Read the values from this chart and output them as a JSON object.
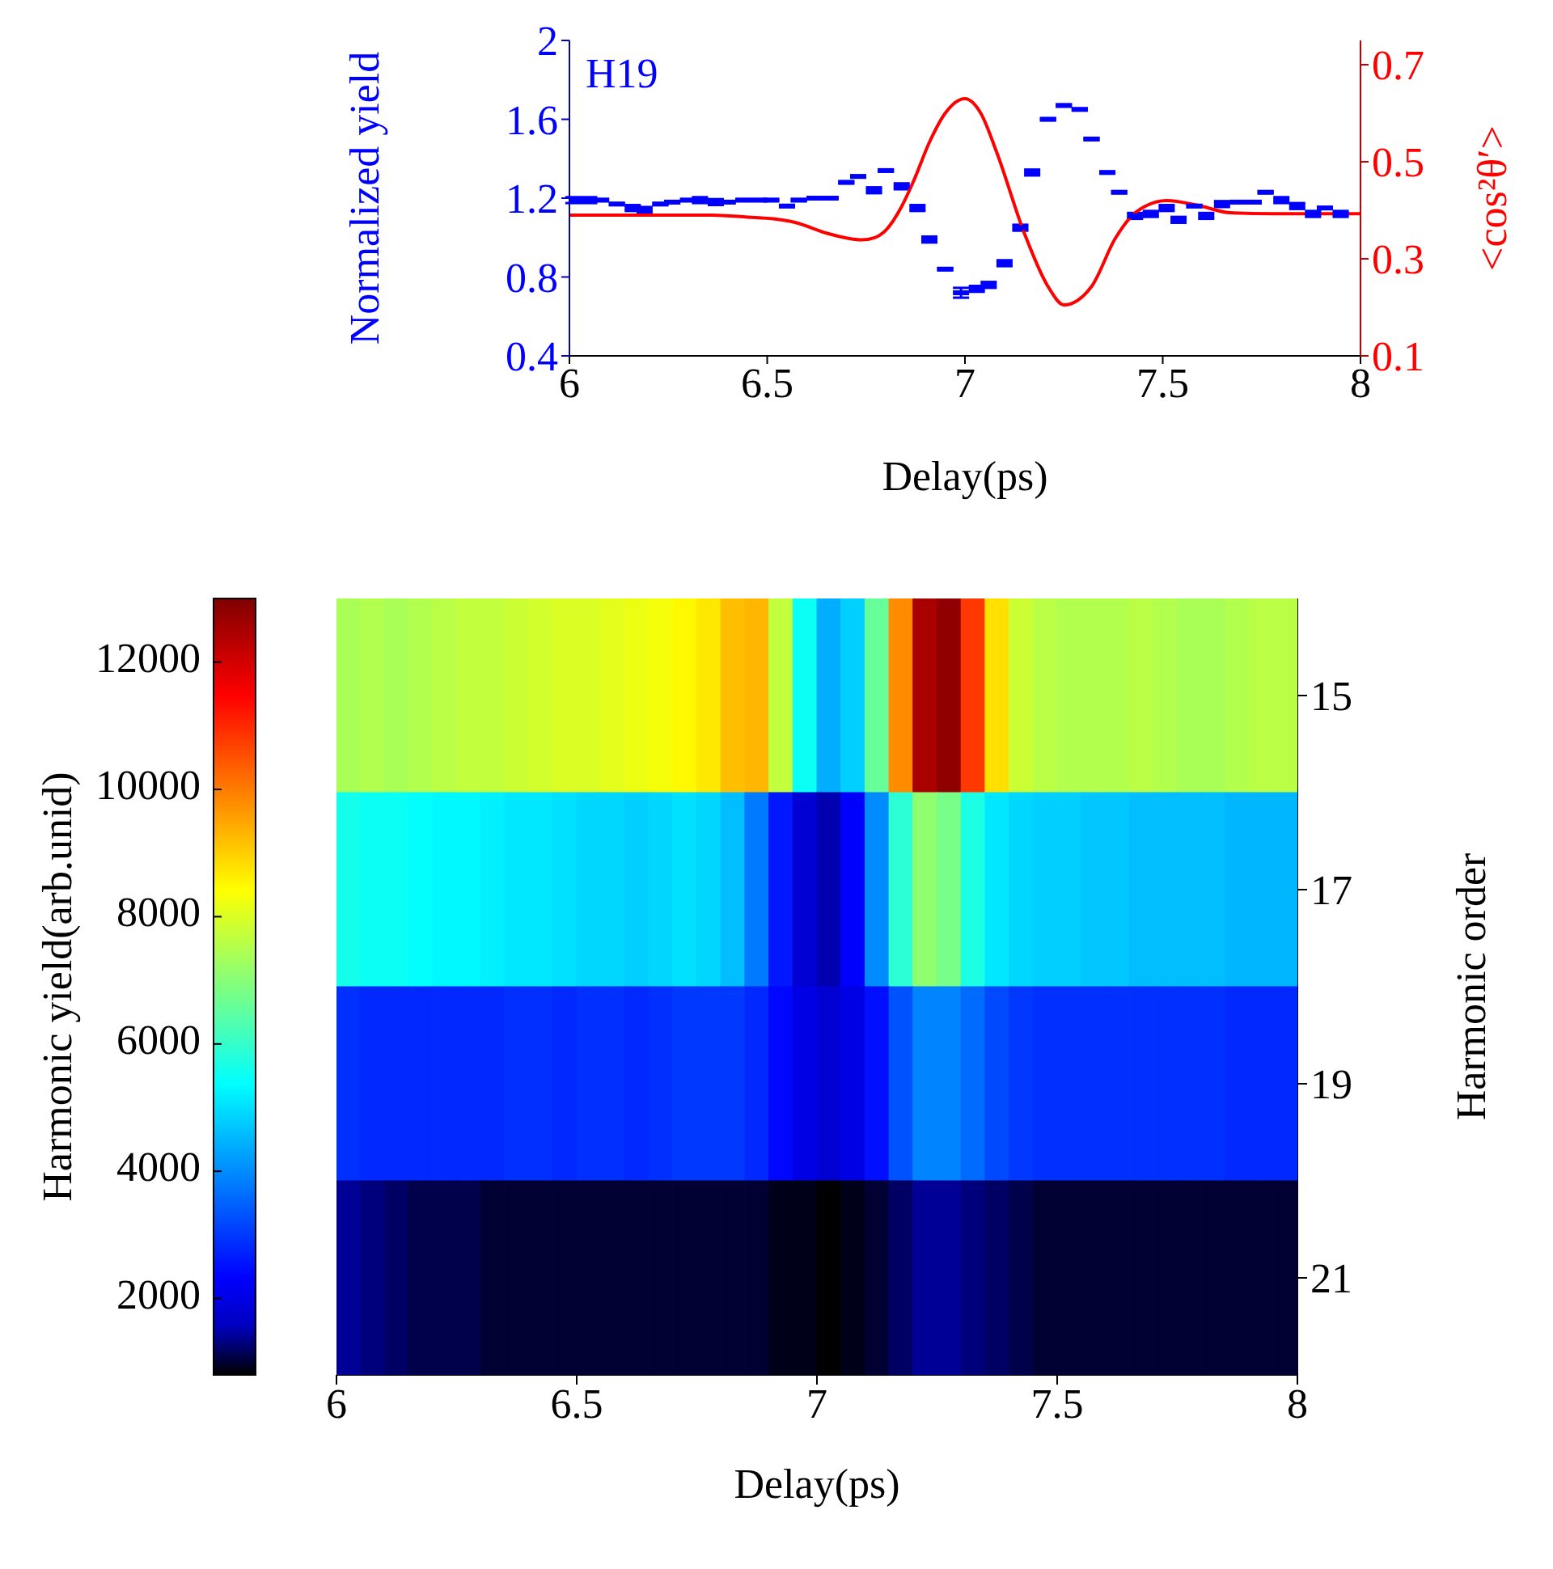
{
  "chart_data": [
    {
      "type": "scatter",
      "xlabel": "Delay(ps)",
      "ylabel": "Normalized yield",
      "y2label": "<cos²θ′>",
      "annotations": [
        "H19"
      ],
      "xlim": [
        6,
        8
      ],
      "xticks": [
        6,
        6.5,
        7,
        7.5,
        8
      ],
      "ylim": [
        0.4,
        2
      ],
      "yticks": [
        0.4,
        0.8,
        1.2,
        1.6,
        2
      ],
      "y2lim": [
        0.1,
        0.75
      ],
      "y2ticks": [
        0.1,
        0.3,
        0.5,
        0.7
      ],
      "series": [
        {
          "type": "scatter",
          "color": "#0000ff",
          "x": [
            6.01,
            6.05,
            6.08,
            6.12,
            6.16,
            6.19,
            6.23,
            6.26,
            6.3,
            6.33,
            6.37,
            6.4,
            6.44,
            6.48,
            6.51,
            6.55,
            6.58,
            6.62,
            6.66,
            6.7,
            6.73,
            6.77,
            6.8,
            6.84,
            6.88,
            6.91,
            6.95,
            6.99,
            7.03,
            7.06,
            7.1,
            7.14,
            7.17,
            7.21,
            7.25,
            7.29,
            7.32,
            7.36,
            7.39,
            7.43,
            7.47,
            7.51,
            7.54,
            7.58,
            7.61,
            7.65,
            7.69,
            7.73,
            7.76,
            7.8,
            7.84,
            7.88,
            7.91,
            7.95
          ],
          "values": [
            1.19,
            1.19,
            1.19,
            1.17,
            1.15,
            1.14,
            1.17,
            1.18,
            1.19,
            1.19,
            1.18,
            1.18,
            1.19,
            1.19,
            1.19,
            1.16,
            1.19,
            1.2,
            1.2,
            1.28,
            1.31,
            1.24,
            1.34,
            1.26,
            1.15,
            0.99,
            0.84,
            0.72,
            0.74,
            0.76,
            0.87,
            1.05,
            1.33,
            1.6,
            1.67,
            1.65,
            1.5,
            1.33,
            1.23,
            1.11,
            1.12,
            1.15,
            1.09,
            1.16,
            1.11,
            1.17,
            1.18,
            1.18,
            1.23,
            1.19,
            1.16,
            1.12,
            1.15,
            1.12
          ],
          "errors": [
            0.015,
            0.015,
            0.005,
            0.005,
            0.015,
            0.015,
            0.005,
            0.005,
            0.005,
            0.015,
            0.015,
            0.005,
            0.005,
            0.005,
            0.005,
            0.005,
            0.005,
            0.005,
            0.005,
            0.005,
            0.005,
            0.015,
            0.005,
            0.015,
            0.015,
            0.015,
            0.005,
            0.025,
            0.015,
            0.015,
            0.015,
            0.015,
            0.015,
            0.005,
            0.005,
            0.005,
            0.005,
            0.005,
            0.005,
            0.015,
            0.015,
            0.015,
            0.015,
            0.005,
            0.015,
            0.015,
            0.005,
            0.005,
            0.005,
            0.015,
            0.015,
            0.015,
            0.005,
            0.015
          ]
        },
        {
          "type": "line",
          "axis": "y2",
          "color": "#ff0000",
          "x": [
            6.0,
            6.2,
            6.36,
            6.45,
            6.52,
            6.57,
            6.65,
            6.7,
            6.74,
            6.77,
            6.8,
            6.84,
            6.87,
            6.91,
            6.95,
            7.0,
            7.04,
            7.08,
            7.15,
            7.21,
            7.25,
            7.32,
            7.38,
            7.42,
            7.46,
            7.51,
            7.59,
            7.67,
            7.78,
            8.0
          ],
          "values": [
            0.39,
            0.39,
            0.39,
            0.386,
            0.382,
            0.375,
            0.353,
            0.343,
            0.339,
            0.343,
            0.359,
            0.408,
            0.46,
            0.54,
            0.6,
            0.63,
            0.6,
            0.52,
            0.353,
            0.243,
            0.205,
            0.243,
            0.342,
            0.387,
            0.41,
            0.42,
            0.41,
            0.395,
            0.393,
            0.393
          ]
        }
      ]
    },
    {
      "type": "heatmap",
      "xlabel": "Delay(ps)",
      "ylabel": "Harmonic order",
      "clabel": "Harmonic yield(arb.unid)",
      "xlim": [
        6,
        8
      ],
      "xticks": [
        6,
        6.5,
        7,
        7.5,
        8
      ],
      "x": [
        6.025,
        6.075,
        6.125,
        6.175,
        6.225,
        6.275,
        6.325,
        6.375,
        6.425,
        6.475,
        6.525,
        6.575,
        6.625,
        6.675,
        6.725,
        6.775,
        6.825,
        6.875,
        6.925,
        6.975,
        7.025,
        7.075,
        7.125,
        7.175,
        7.225,
        7.275,
        7.325,
        7.375,
        7.425,
        7.475,
        7.525,
        7.575,
        7.625,
        7.675,
        7.725,
        7.775,
        7.825,
        7.875,
        7.925,
        7.975
      ],
      "y_categories": [
        "15",
        "17",
        "19",
        "21"
      ],
      "cells": [
        [
          7400,
          7500,
          7400,
          7500,
          7600,
          7700,
          7700,
          7800,
          7900,
          8000,
          8000,
          8100,
          8200,
          8300,
          8500,
          8700,
          9200,
          9300,
          7700,
          5500,
          4400,
          4800,
          6600,
          9800,
          12500,
          12800,
          10800,
          8800,
          7800,
          7600,
          7500,
          7500,
          7500,
          7600,
          7500,
          7400,
          7400,
          7500,
          7600,
          7600
        ],
        [
          5600,
          5500,
          5500,
          5400,
          5300,
          5300,
          5200,
          5100,
          5100,
          5000,
          4900,
          4900,
          4800,
          4900,
          5000,
          4900,
          4600,
          3800,
          2600,
          1800,
          1500,
          2300,
          4000,
          5900,
          7100,
          6800,
          5700,
          5100,
          4900,
          4800,
          4800,
          4700,
          4700,
          4600,
          4600,
          4600,
          4600,
          4500,
          4500,
          4500
        ],
        [
          2900,
          2800,
          2800,
          2800,
          2800,
          2800,
          2800,
          2900,
          2900,
          2800,
          2900,
          2900,
          2800,
          2900,
          3000,
          3000,
          3000,
          2800,
          2400,
          2000,
          1800,
          2000,
          2500,
          3300,
          3900,
          3900,
          3600,
          3200,
          3000,
          2900,
          2900,
          2900,
          2900,
          2900,
          2900,
          2900,
          2900,
          2800,
          2800,
          2800
        ],
        [
          1400,
          1300,
          1200,
          1100,
          1100,
          1100,
          1000,
          1000,
          1000,
          1000,
          1000,
          1000,
          1000,
          1000,
          1000,
          1000,
          1000,
          1000,
          900,
          900,
          800,
          900,
          1000,
          1200,
          1400,
          1400,
          1300,
          1200,
          1100,
          1000,
          1000,
          1000,
          1000,
          1000,
          1000,
          1000,
          1000,
          1000,
          1000,
          1000
        ]
      ],
      "clim": [
        800,
        13000
      ],
      "cticks": [
        2000,
        4000,
        6000,
        8000,
        10000,
        12000
      ]
    }
  ]
}
